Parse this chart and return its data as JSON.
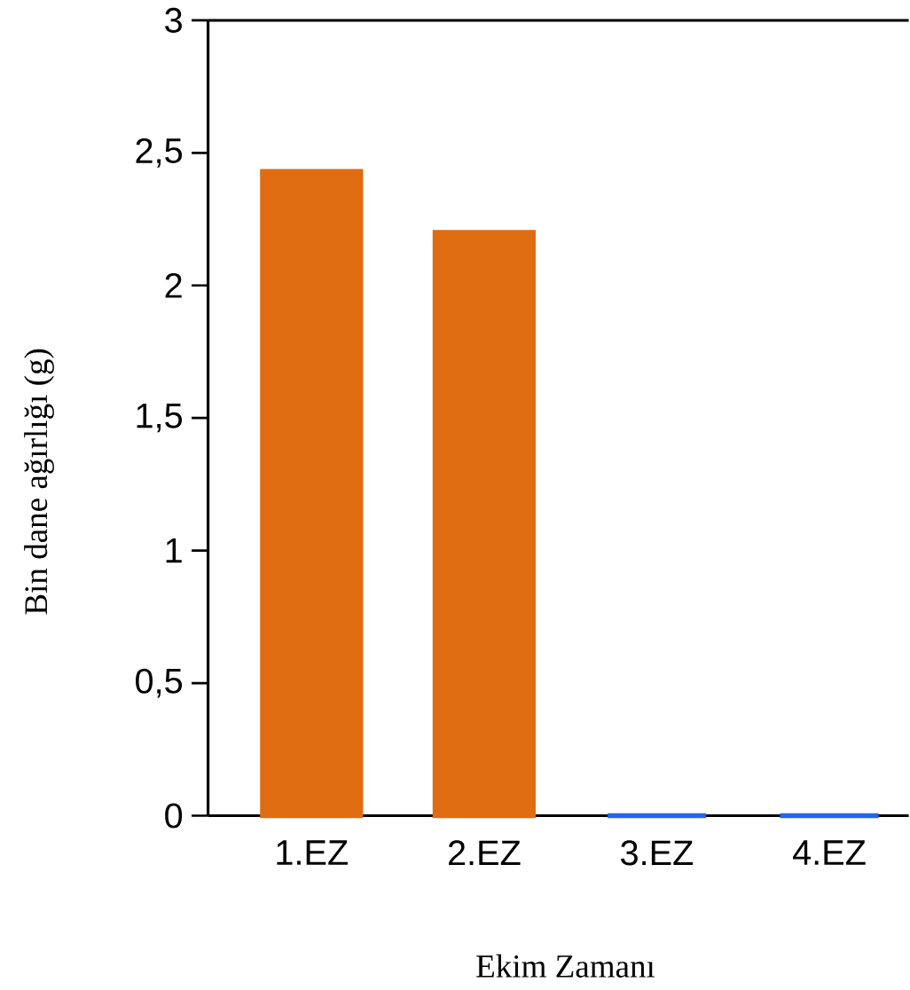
{
  "chart_data": {
    "type": "bar",
    "categories": [
      "1.EZ",
      "2.EZ",
      "3.EZ",
      "4.EZ"
    ],
    "values": [
      2.43,
      2.2,
      0,
      0
    ],
    "colors": [
      "#e06c12",
      "#e06c12",
      "#2266ee",
      "#2266ee"
    ],
    "xlabel": "Ekim Zamanı",
    "ylabel": "Bin dane ağırlığı (g)",
    "ylim": [
      0,
      3
    ],
    "yticks": [
      0,
      {
        "value": 0.5,
        "label": "0,5"
      },
      1,
      {
        "value": 1.5,
        "label": "1,5"
      },
      2,
      {
        "value": 2.5,
        "label": "2,5"
      },
      3
    ]
  }
}
